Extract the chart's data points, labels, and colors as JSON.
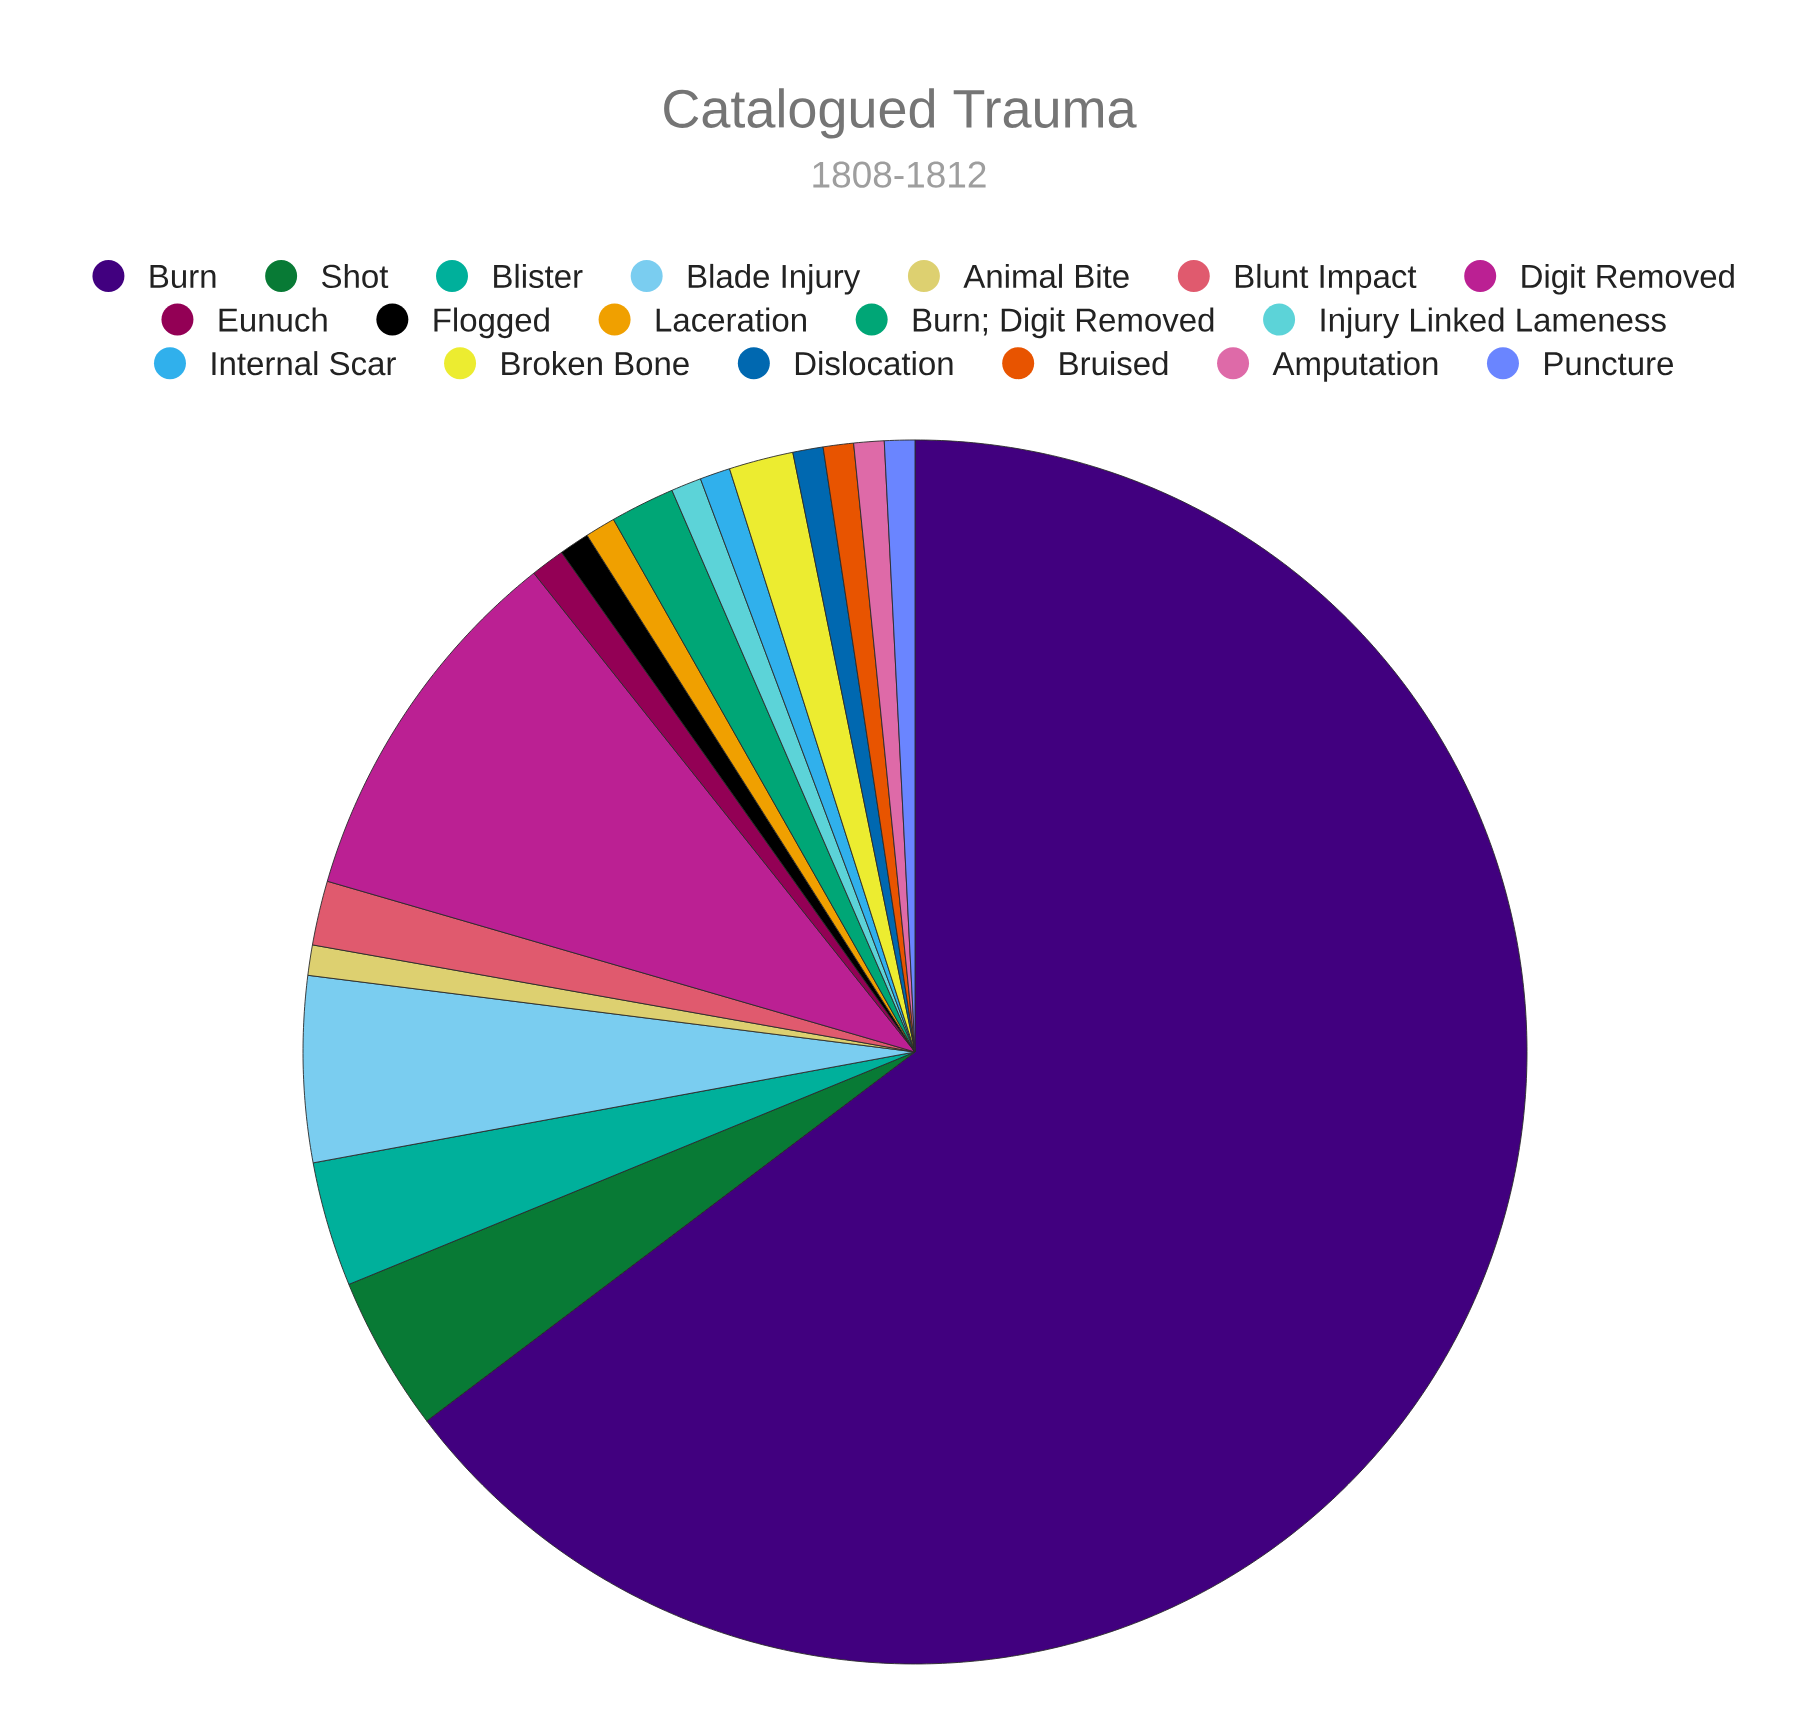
{
  "chart_data": {
    "type": "pie",
    "title": "Catalogued Trauma",
    "subtitle": "1808-1812",
    "categories": [
      "Burn",
      "Shot",
      "Blister",
      "Blade Injury",
      "Animal Bite",
      "Blunt Impact",
      "Digit Removed",
      "Eunuch",
      "Flogged",
      "Laceration",
      "Burn; Digit Removed",
      "Injury Linked Lameness",
      "Internal Scar",
      "Broken Bone",
      "Dislocation",
      "Bruised",
      "Amputation",
      "Puncture"
    ],
    "values": [
      64.7,
      4.1,
      3.3,
      4.9,
      0.8,
      1.7,
      9.8,
      0.9,
      0.8,
      0.8,
      1.7,
      0.8,
      0.8,
      1.7,
      0.8,
      0.8,
      0.8,
      0.8
    ],
    "colors": [
      "#41007f",
      "#087a35",
      "#00b09b",
      "#7acdf0",
      "#ddd070",
      "#e05a6e",
      "#bb2093",
      "#930055",
      "#000000",
      "#f0a000",
      "#00a676",
      "#5cd3d8",
      "#30b0ec",
      "#ecec30",
      "#0068b0",
      "#e85400",
      "#de6aa8",
      "#6a85ff"
    ],
    "legend": "top"
  }
}
